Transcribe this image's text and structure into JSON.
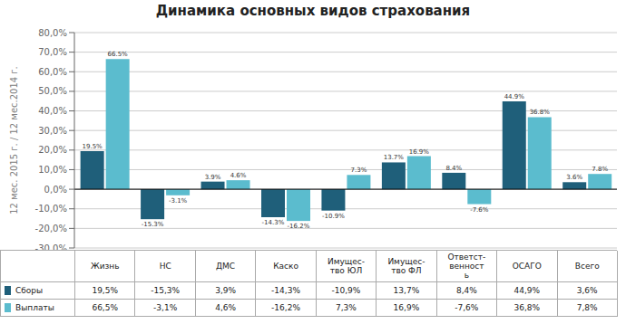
{
  "chart_data": {
    "type": "bar",
    "title": "Динамика основных видов страхования",
    "ylabel": "12 мес. 2015 г. / 12 мес.2014 г.",
    "categories": [
      "Жизнь",
      "НС",
      "ДМС",
      "Каско",
      "Имущес-\nтво ЮЛ",
      "Имущес-\nтво ФЛ",
      "Ответст-\nвенност\nь",
      "ОСАГО",
      "Всего"
    ],
    "series": [
      {
        "name": "Сборы",
        "color": "#1f5f7a",
        "values": [
          19.5,
          -15.3,
          3.9,
          -14.3,
          -10.9,
          13.7,
          8.4,
          44.9,
          3.6
        ],
        "value_labels": [
          "19.5%",
          "-15.3%",
          "3.9%",
          "-14.3%",
          "-10.9%",
          "13.7%",
          "8.4%",
          "44.9%",
          "3.6%"
        ],
        "table_labels": [
          "19,5%",
          "-15,3%",
          "3,9%",
          "-14,3%",
          "-10,9%",
          "13,7%",
          "8,4%",
          "44,9%",
          "3,6%"
        ]
      },
      {
        "name": "Выплаты",
        "color": "#5bbcce",
        "values": [
          66.5,
          -3.1,
          4.6,
          -16.2,
          7.3,
          16.9,
          -7.6,
          36.8,
          7.8
        ],
        "value_labels": [
          "66.5%",
          "-3.1%",
          "4.6%",
          "-16.2%",
          "7.3%",
          "16.9%",
          "-7.6%",
          "36.8%",
          "7.8%"
        ],
        "table_labels": [
          "66,5%",
          "-3,1%",
          "4,6%",
          "-16,2%",
          "7,3%",
          "16,9%",
          "-7,6%",
          "36,8%",
          "7,8%"
        ]
      }
    ],
    "ylim": [
      -30,
      80
    ],
    "yticks": [
      {
        "value": -30,
        "label": "-30,0%"
      },
      {
        "value": -20,
        "label": "-20,0%"
      },
      {
        "value": -10,
        "label": "-10,0%"
      },
      {
        "value": 0,
        "label": "0,0%"
      },
      {
        "value": 10,
        "label": "10,0%"
      },
      {
        "value": 20,
        "label": "20,0%"
      },
      {
        "value": 30,
        "label": "30,0%"
      },
      {
        "value": 40,
        "label": "40,0%"
      },
      {
        "value": 50,
        "label": "50,0%"
      },
      {
        "value": 60,
        "label": "60,0%"
      },
      {
        "value": 70,
        "label": "70,0%"
      },
      {
        "value": 80,
        "label": "80,0%"
      }
    ],
    "grid": true,
    "data_labels": true
  }
}
